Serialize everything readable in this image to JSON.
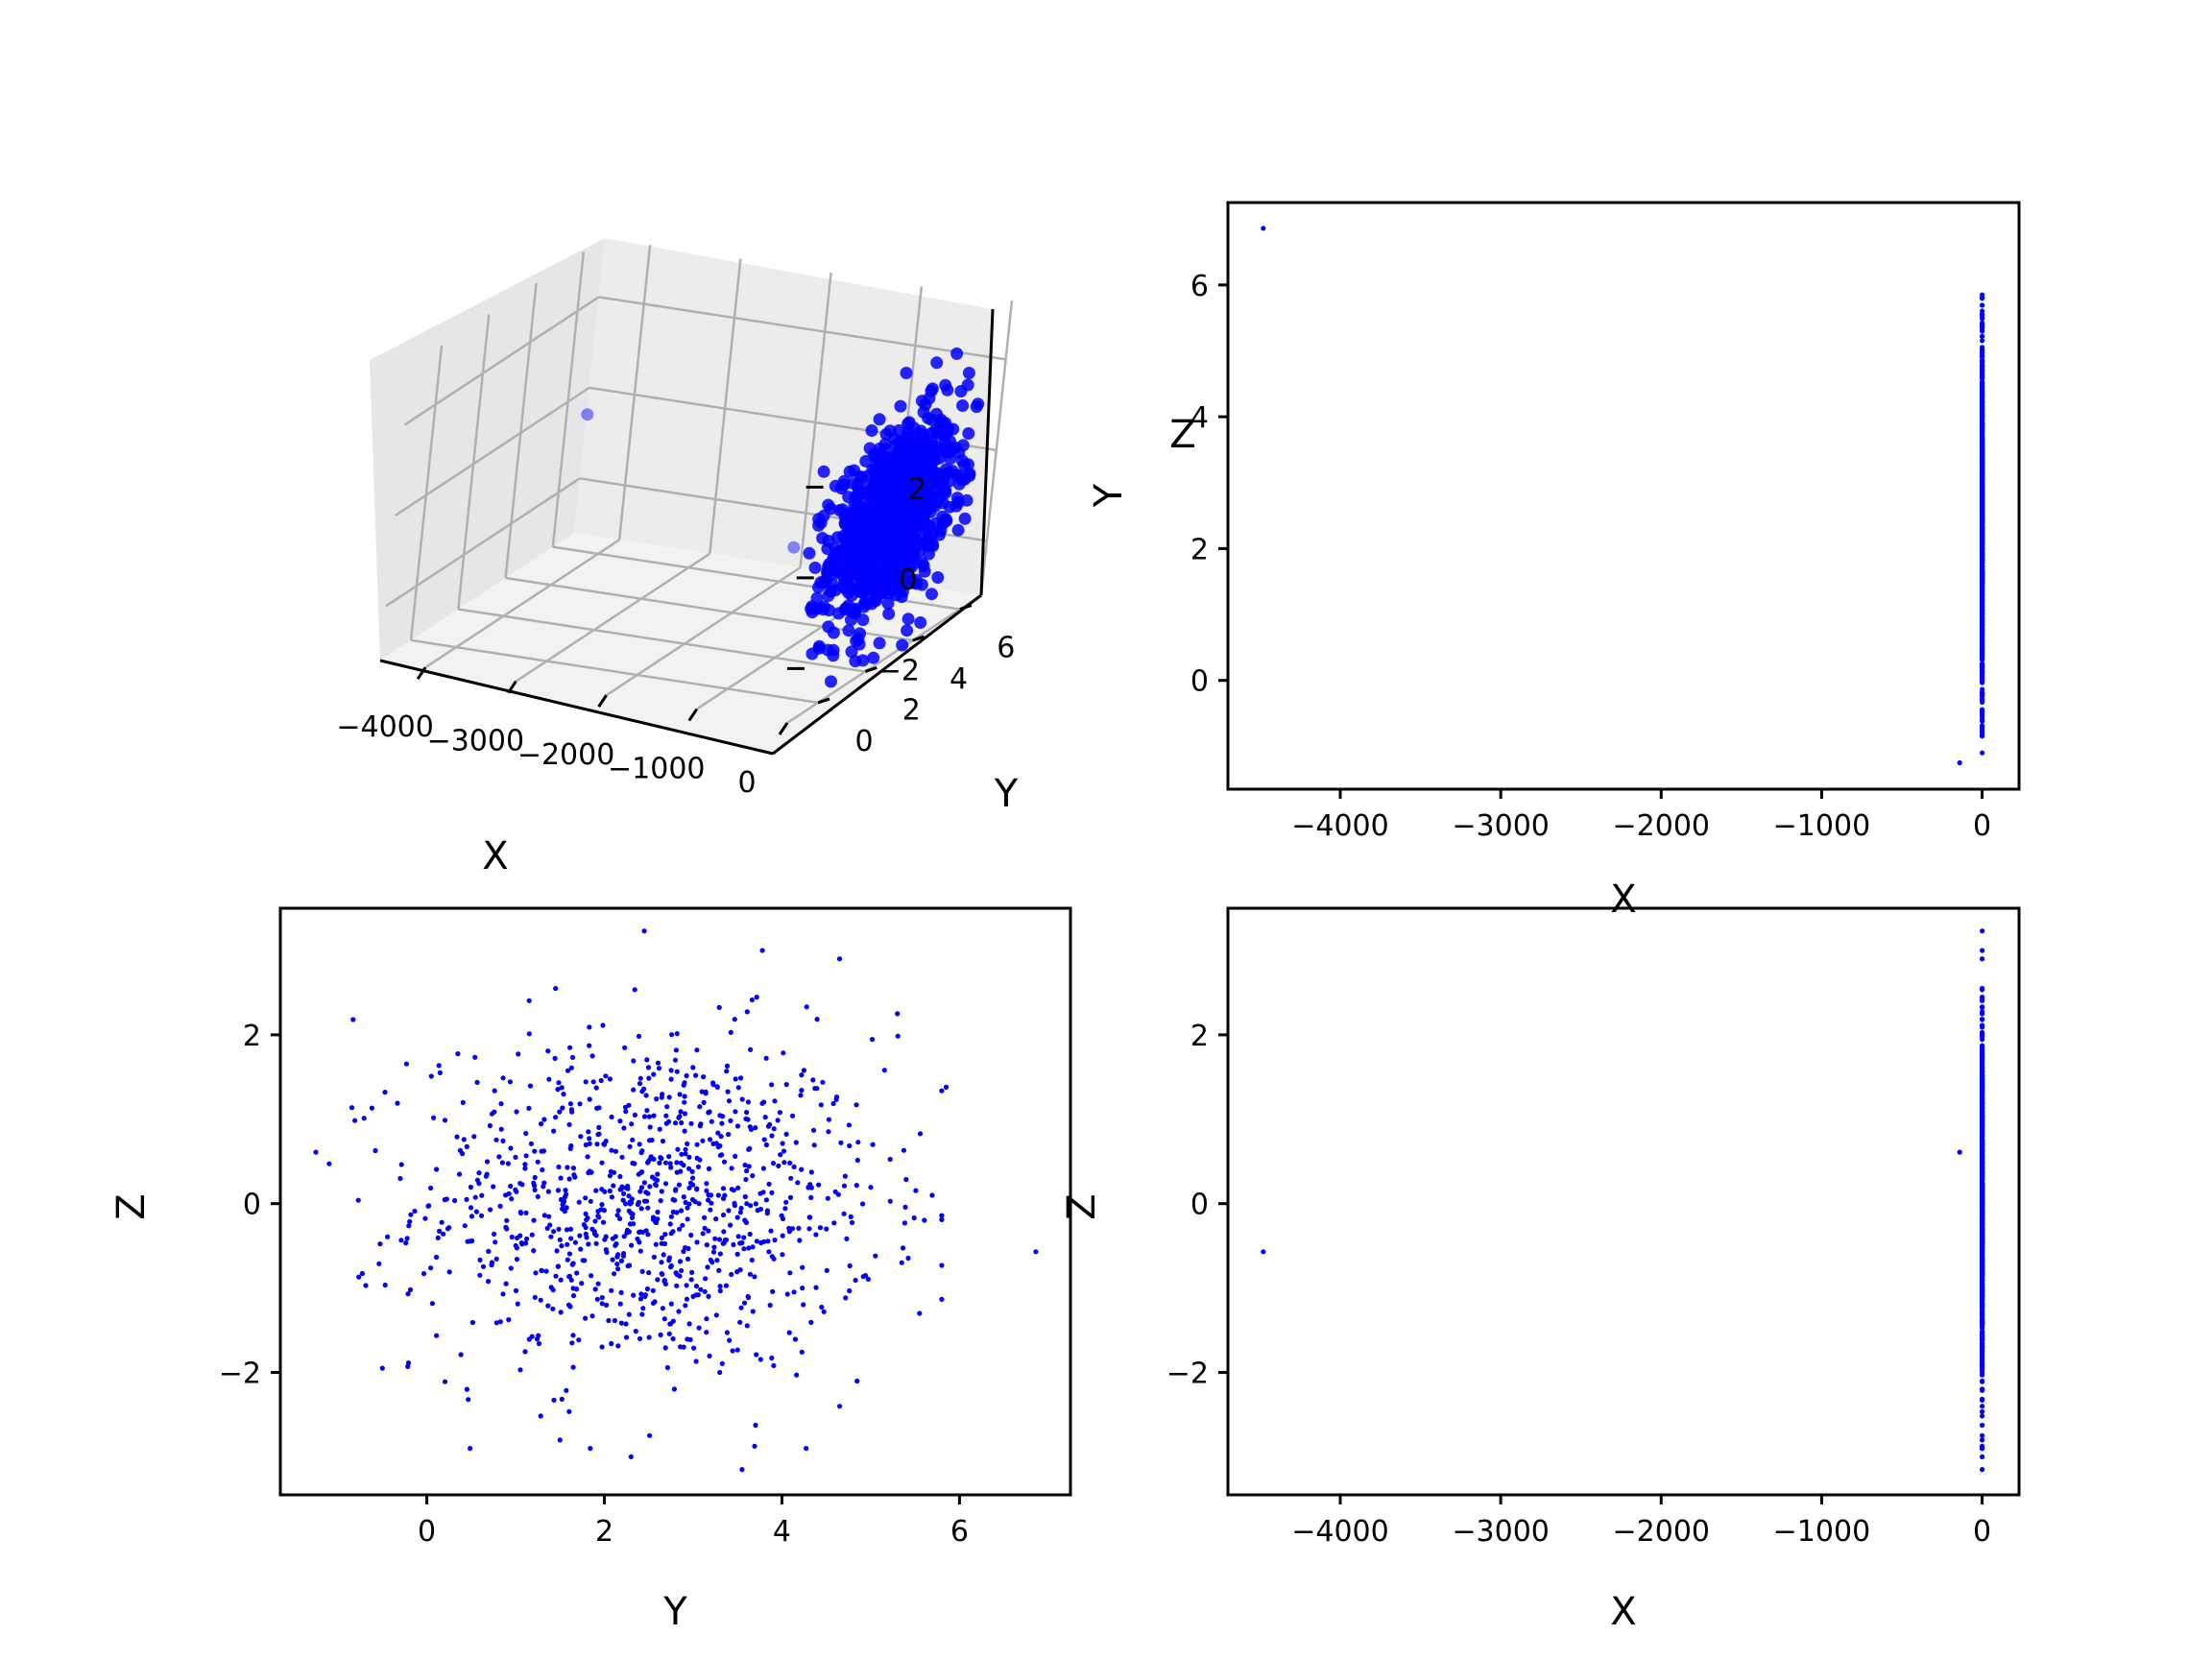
{
  "figure": {
    "background": "#ffffff",
    "marker_color": "#0000ff"
  },
  "chart_data": [
    {
      "type": "scatter",
      "projection": "3d",
      "xlabel": "X",
      "ylabel": "Y",
      "zlabel": "Z",
      "xlim": [
        -4500,
        0
      ],
      "ylim": [
        -1.3,
        6.9
      ],
      "zlim": [
        -3.2,
        3.3
      ],
      "xticks": [
        -4000,
        -3000,
        -2000,
        -1000,
        0
      ],
      "yticks": [
        0,
        2,
        4,
        6
      ],
      "zticks": [
        -2,
        0,
        2
      ],
      "xtick_labels": [
        "−4000",
        "−3000",
        "−2000",
        "−1000",
        "0"
      ],
      "ytick_labels": [
        "0",
        "2",
        "4",
        "6"
      ],
      "ztick_labels": [
        "−2",
        "0",
        "2"
      ],
      "grid": true,
      "series": [
        {
          "color": "#0000ff",
          "marker": "o",
          "points_ref": "points"
        }
      ]
    },
    {
      "type": "scatter",
      "xlabel": "X",
      "ylabel": "Y",
      "xfield": "x",
      "yfield": "y",
      "xlim": [
        -4700,
        230
      ],
      "ylim": [
        -1.65,
        7.25
      ],
      "xticks": [
        -4000,
        -3000,
        -2000,
        -1000,
        0
      ],
      "yticks": [
        0,
        2,
        4,
        6
      ],
      "xtick_labels": [
        "−4000",
        "−3000",
        "−2000",
        "−1000",
        "0"
      ],
      "ytick_labels": [
        "0",
        "2",
        "4",
        "6"
      ],
      "grid": false
    },
    {
      "type": "scatter",
      "xlabel": "Y",
      "ylabel": "Z",
      "xfield": "y",
      "yfield": "z",
      "xlim": [
        -1.65,
        7.25
      ],
      "ylim": [
        -3.45,
        3.5
      ],
      "xticks": [
        0,
        2,
        4,
        6
      ],
      "yticks": [
        -2,
        0,
        2
      ],
      "xtick_labels": [
        "0",
        "2",
        "4",
        "6"
      ],
      "ytick_labels": [
        "−2",
        "0",
        "2"
      ],
      "grid": false
    },
    {
      "type": "scatter",
      "xlabel": "X",
      "ylabel": "Z",
      "xfield": "x",
      "yfield": "z",
      "xlim": [
        -4700,
        230
      ],
      "ylim": [
        -3.45,
        3.5
      ],
      "xticks": [
        -4000,
        -3000,
        -2000,
        -1000,
        0
      ],
      "yticks": [
        -2,
        0,
        2
      ],
      "xtick_labels": [
        "−4000",
        "−3000",
        "−2000",
        "−1000",
        "0"
      ],
      "ytick_labels": [
        "−2",
        "0",
        "2"
      ],
      "grid": false
    }
  ],
  "points": [
    {
      "x": -4480,
      "y": 6.86,
      "z": -0.57
    },
    {
      "x": -140,
      "y": -1.25,
      "z": 0.61
    },
    {
      "x": 0,
      "y": 2.45,
      "z": 3.23
    },
    {
      "x": 0,
      "y": 3.55,
      "z": -3.15
    },
    {
      "x": 0,
      "y": 3.78,
      "z": 3.0
    },
    {
      "x": 0,
      "y": -0.83,
      "z": 2.18
    },
    {
      "x": 0,
      "y": 5.85,
      "z": 1.38
    },
    {
      "x": 0,
      "y": 5.55,
      "z": -1.3
    },
    {
      "x": 0,
      "y": -0.5,
      "z": -1.95
    },
    {
      "x": 0,
      "y": 2.3,
      "z": -3.0
    },
    {
      "x": 0,
      "y": 1.45,
      "z": 2.55
    },
    {
      "x": 0,
      "y": 5.3,
      "z": 2.25
    },
    {
      "x": 0,
      "y": 4.65,
      "z": -2.4
    },
    {
      "x": 0,
      "y": 1.5,
      "z": -2.8
    },
    {
      "x": 0,
      "y": 0.15,
      "z": 1.55
    },
    {
      "x": 0,
      "y": 5.35,
      "z": -0.7
    },
    {
      "x": 0,
      "y": 2.9,
      "z": 1.2
    },
    {
      "x": 0,
      "y": 2.7,
      "z": 0.95
    },
    {
      "x": 0,
      "y": 2.2,
      "z": 0.2
    },
    {
      "x": 0,
      "y": 2.6,
      "z": -0.1
    },
    {
      "x": 0,
      "y": 3.2,
      "z": 0.1
    },
    {
      "x": 0,
      "y": 1.8,
      "z": -0.4
    },
    {
      "x": 0,
      "y": 3.5,
      "z": -0.6
    },
    {
      "x": 0,
      "y": 2.0,
      "z": 0.7
    },
    {
      "x": 0,
      "y": 3.0,
      "z": -1.1
    },
    {
      "x": 0,
      "y": 1.3,
      "z": 0.4
    },
    {
      "x": 0,
      "y": 4.1,
      "z": 0.3
    },
    {
      "x": 0,
      "y": 2.4,
      "z": -1.6
    },
    {
      "x": 0,
      "y": 3.7,
      "z": 0.9
    },
    {
      "x": 0,
      "y": 0.9,
      "z": -0.2
    },
    {
      "x": 0,
      "y": 4.5,
      "z": -0.3
    },
    {
      "x": 0,
      "y": 2.8,
      "z": 1.7
    },
    {
      "x": 0,
      "y": 1.6,
      "z": -1.2
    },
    {
      "x": 0,
      "y": 3.3,
      "z": -2.0
    }
  ],
  "scatter_cloud": {
    "count": 1000,
    "x_mean": 0,
    "x_std": 0,
    "y_mean": 2.5,
    "y_std": 1.3,
    "z_mean": 0,
    "z_std": 1.0
  }
}
